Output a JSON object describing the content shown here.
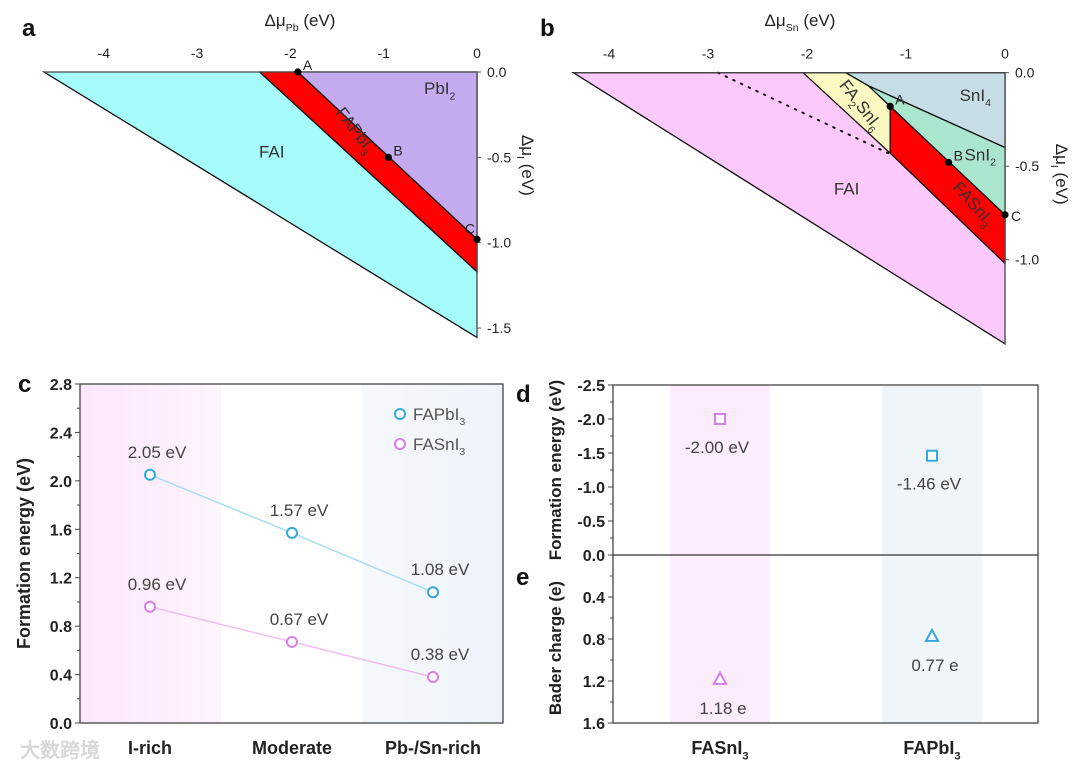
{
  "colors": {
    "fai_a": "#a6fbfb",
    "pbi2": "#c4aaee",
    "perovskite": "#ff0000",
    "fai_b": "#fdc8fb",
    "fa2sni6": "#fbf8c2",
    "sni4": "#c6dde6",
    "sni2": "#aae6cd",
    "fapbi3": "#35a8e0",
    "fasni3": "#d67fe8",
    "fapbi3_line": "#a9dcf2",
    "fasni3_line": "#f1bdf1",
    "band_pink": "#fbe6fb",
    "band_blue": "#edf3f9"
  },
  "watermark": "大数跨境",
  "chart_data": [
    {
      "panel": "a",
      "type": "area",
      "xlabel": [
        "Δμ",
        "Pb",
        " (eV)"
      ],
      "ylabel": [
        "Δμ",
        "I",
        " (eV)"
      ],
      "xticks": [
        -4,
        -3,
        -2,
        -1,
        0
      ],
      "xtick_labels": [
        "-4",
        "-3",
        "-2",
        "-1",
        "0"
      ],
      "yticks": [
        0,
        -0.5,
        -1.0,
        -1.5
      ],
      "ytick_labels": [
        "0.0",
        "-0.5",
        "-1.0",
        "-1.5"
      ],
      "regions": [
        {
          "name": "FAI",
          "label": [
            "FAI"
          ],
          "color_key": "fai_a",
          "points": [
            [
              -4.64,
              0
            ],
            [
              0,
              0
            ],
            [
              0,
              -1.555
            ]
          ],
          "label_at": [
            -2.2,
            -0.5
          ],
          "angle": 0
        },
        {
          "name": "FAPbI3",
          "label": [
            "FAPbI",
            "3"
          ],
          "color_key": "perovskite",
          "points": [
            [
              -2.33,
              0
            ],
            [
              -1.92,
              0
            ],
            [
              0,
              -0.98
            ],
            [
              0,
              -1.17
            ]
          ],
          "label_at": [
            -1.35,
            -0.36
          ],
          "angle": 52
        },
        {
          "name": "PbI2",
          "label": [
            "PbI",
            "2"
          ],
          "color_key": "pbi2",
          "points": [
            [
              -1.92,
              0
            ],
            [
              0,
              0
            ],
            [
              0,
              -0.98
            ]
          ],
          "label_at": [
            -0.4,
            -0.13
          ],
          "angle": 0
        }
      ],
      "points": [
        {
          "label": "A",
          "x": -1.92,
          "y": 0
        },
        {
          "label": "B",
          "x": -0.95,
          "y": -0.5
        },
        {
          "label": "C",
          "x": 0,
          "y": -0.98
        }
      ]
    },
    {
      "panel": "b",
      "type": "area",
      "xlabel": [
        "Δμ",
        "Sn",
        " (eV)"
      ],
      "ylabel": [
        "Δμ",
        "I",
        " (eV)"
      ],
      "xticks": [
        -4,
        -3,
        -2,
        -1,
        0
      ],
      "xtick_labels": [
        "-4",
        "-3",
        "-2",
        "-1",
        "0"
      ],
      "yticks": [
        0,
        -0.5,
        -1.0
      ],
      "ytick_labels": [
        "0.0",
        "-0.5",
        "-1.0"
      ],
      "regions": [
        {
          "name": "FAI",
          "label": [
            "FAI"
          ],
          "color_key": "fai_b",
          "points": [
            [
              -4.36,
              0
            ],
            [
              0,
              0
            ],
            [
              0,
              -1.45
            ]
          ],
          "label_at": [
            -1.6,
            -0.65
          ],
          "angle": 0
        },
        {
          "name": "SnI4",
          "label": [
            "SnI",
            "4"
          ],
          "color_key": "sni4",
          "points": [
            [
              -1.61,
              0
            ],
            [
              0,
              0
            ],
            [
              0,
              -0.4
            ],
            [
              -1.38,
              -0.07
            ]
          ],
          "label_at": [
            -0.3,
            -0.15
          ],
          "angle": 0
        },
        {
          "name": "SnI2",
          "label": [
            "SnI",
            "2"
          ],
          "color_key": "sni2",
          "points": [
            [
              -1.38,
              -0.07
            ],
            [
              0,
              -0.4
            ],
            [
              0,
              -0.76
            ],
            [
              -1.16,
              -0.18
            ]
          ],
          "label_at": [
            -0.25,
            -0.47
          ],
          "angle": 0
        },
        {
          "name": "FA2SnI6",
          "label": [
            "FA",
            "2",
            "SnI",
            "6"
          ],
          "color_key": "fa2sni6",
          "points": [
            [
              -2.04,
              0
            ],
            [
              -1.61,
              0
            ],
            [
              -1.38,
              -0.07
            ],
            [
              -1.16,
              -0.18
            ],
            [
              -1.16,
              -0.43
            ]
          ],
          "label_at": [
            -1.5,
            -0.19
          ],
          "angle": 52
        },
        {
          "name": "FASnI3",
          "label": [
            "FASnI",
            "3"
          ],
          "color_key": "perovskite",
          "points": [
            [
              -1.16,
              -0.18
            ],
            [
              0,
              -0.76
            ],
            [
              0,
              -1.02
            ],
            [
              -1.16,
              -0.43
            ]
          ],
          "label_at": [
            -0.36,
            -0.72
          ],
          "angle": 48
        }
      ],
      "dotted_line": [
        [
          -2.9,
          0
        ],
        [
          -1.18,
          -0.43
        ]
      ],
      "points": [
        {
          "label": "A",
          "x": -1.16,
          "y": -0.18
        },
        {
          "label": "B",
          "x": -0.57,
          "y": -0.48
        },
        {
          "label": "C",
          "x": 0,
          "y": -0.76
        }
      ]
    },
    {
      "panel": "c",
      "type": "line",
      "ylabel": "Formation energy (eV)",
      "xlabel": "",
      "categories": [
        "I-rich",
        "Moderate",
        "Pb-/Sn-rich"
      ],
      "ylim": [
        0,
        2.8
      ],
      "yticks": [
        "0.0",
        "0.4",
        "0.8",
        "1.2",
        "1.6",
        "2.0",
        "2.4",
        "2.8"
      ],
      "series": [
        {
          "name": [
            "FAPbI",
            "3"
          ],
          "color_key": "fapbi3",
          "line_key": "fapbi3_line",
          "values": [
            2.05,
            1.57,
            1.08
          ],
          "labels": [
            "2.05 eV",
            "1.57 eV",
            "1.08 eV"
          ]
        },
        {
          "name": [
            "FASnI",
            "3"
          ],
          "color_key": "fasni3",
          "line_key": "fasni3_line",
          "values": [
            0.96,
            0.67,
            0.38
          ],
          "labels": [
            "0.96 eV",
            "0.67 eV",
            "0.38 eV"
          ]
        }
      ],
      "legend": "top-right"
    },
    {
      "panel": "d",
      "type": "scatter",
      "ylabel": "Formation energy (eV)",
      "categories": [
        [
          "FASnI",
          "3"
        ],
        [
          "FAPbI",
          "3"
        ]
      ],
      "ylim": [
        0,
        -2.5
      ],
      "yticks": [
        "-2.5",
        "-2.0",
        "-1.5",
        "-1.0",
        "-0.5",
        "0.0"
      ],
      "values": [
        -2.0,
        -1.46
      ],
      "labels": [
        "-2.00 eV",
        "-1.46 eV"
      ],
      "marker": "square"
    },
    {
      "panel": "e",
      "type": "scatter",
      "ylabel": "Bader charge (e)",
      "categories": [
        [
          "FASnI",
          "3"
        ],
        [
          "FAPbI",
          "3"
        ]
      ],
      "ylim": [
        0,
        1.6
      ],
      "yticks": [
        "0.4",
        "0.8",
        "1.2",
        "1.6"
      ],
      "values": [
        1.18,
        0.77
      ],
      "labels": [
        "1.18 e",
        "0.77 e"
      ],
      "marker": "triangle"
    }
  ]
}
